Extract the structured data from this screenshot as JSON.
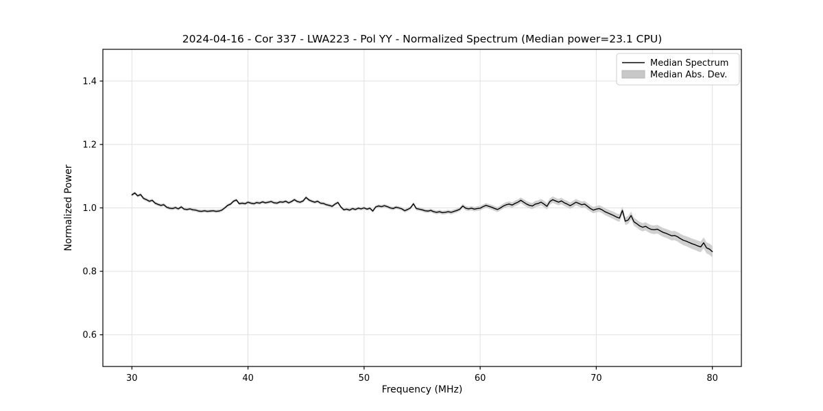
{
  "chart_data": {
    "type": "line",
    "title": "2024-04-16 - Cor 337 - LWA223 - Pol YY - Normalized Spectrum (Median power=23.1 CPU)",
    "xlabel": "Frequency (MHz)",
    "ylabel": "Normalized Power",
    "axes": {
      "xlim": [
        27.5,
        82.5
      ],
      "ylim": [
        0.5,
        1.5
      ],
      "xticks": [
        30,
        40,
        50,
        60,
        70,
        80
      ],
      "xtick_labels": [
        "30",
        "40",
        "50",
        "60",
        "70",
        "80"
      ],
      "yticks": [
        0.6,
        0.8,
        1.0,
        1.2,
        1.4
      ],
      "ytick_labels": [
        "0.6",
        "0.8",
        "1.0",
        "1.2",
        "1.4"
      ],
      "grid": true
    },
    "legend": {
      "position": "upper right",
      "entries": [
        {
          "label": "Median Spectrum",
          "type": "line",
          "color": "#000000"
        },
        {
          "label": "Median Abs. Dev.",
          "type": "patch",
          "color": "#c8c8c8"
        }
      ]
    },
    "x_start": 30,
    "x_step": 0.25,
    "series": [
      {
        "name": "Median Spectrum",
        "color": "#000000",
        "values": [
          1.041,
          1.047,
          1.038,
          1.042,
          1.03,
          1.026,
          1.021,
          1.024,
          1.015,
          1.011,
          1.008,
          1.01,
          1.002,
          0.999,
          0.998,
          1.001,
          0.997,
          1.003,
          0.996,
          0.995,
          0.997,
          0.994,
          0.993,
          0.99,
          0.989,
          0.991,
          0.989,
          0.99,
          0.991,
          0.989,
          0.99,
          0.993,
          1.0,
          1.008,
          1.012,
          1.021,
          1.025,
          1.013,
          1.015,
          1.013,
          1.018,
          1.015,
          1.013,
          1.017,
          1.015,
          1.019,
          1.016,
          1.018,
          1.02,
          1.016,
          1.015,
          1.019,
          1.018,
          1.021,
          1.016,
          1.02,
          1.026,
          1.02,
          1.018,
          1.022,
          1.033,
          1.025,
          1.021,
          1.018,
          1.021,
          1.015,
          1.014,
          1.01,
          1.008,
          1.005,
          1.012,
          1.017,
          1.003,
          0.994,
          0.996,
          0.993,
          0.998,
          0.995,
          0.999,
          0.997,
          1.0,
          0.996,
          0.999,
          0.99,
          1.003,
          1.006,
          1.004,
          1.007,
          1.004,
          1.0,
          0.998,
          1.002,
          1.0,
          0.997,
          0.991,
          0.995,
          1.0,
          1.013,
          0.998,
          0.996,
          0.994,
          0.991,
          0.99,
          0.992,
          0.988,
          0.986,
          0.988,
          0.985,
          0.986,
          0.988,
          0.986,
          0.989,
          0.992,
          0.996,
          1.006,
          0.999,
          0.997,
          0.999,
          0.996,
          0.998,
          0.999,
          1.004,
          1.008,
          1.005,
          1.002,
          0.998,
          0.995,
          1.0,
          1.006,
          1.01,
          1.012,
          1.009,
          1.014,
          1.018,
          1.024,
          1.018,
          1.012,
          1.008,
          1.006,
          1.012,
          1.014,
          1.018,
          1.012,
          1.005,
          1.02,
          1.026,
          1.022,
          1.018,
          1.022,
          1.016,
          1.012,
          1.007,
          1.012,
          1.018,
          1.014,
          1.01,
          1.012,
          1.005,
          0.998,
          0.993,
          0.996,
          0.998,
          0.994,
          0.988,
          0.984,
          0.98,
          0.976,
          0.971,
          0.968,
          0.992,
          0.958,
          0.962,
          0.976,
          0.956,
          0.95,
          0.943,
          0.939,
          0.942,
          0.936,
          0.932,
          0.931,
          0.933,
          0.928,
          0.923,
          0.92,
          0.916,
          0.912,
          0.913,
          0.909,
          0.903,
          0.898,
          0.895,
          0.891,
          0.887,
          0.884,
          0.88,
          0.877,
          0.89,
          0.874,
          0.87,
          0.862
        ]
      }
    ],
    "band": {
      "name": "Median Abs. Dev.",
      "color": "#c8c8c8",
      "mad_anchors": [
        [
          30,
          0.005
        ],
        [
          50,
          0.005
        ],
        [
          57,
          0.006
        ],
        [
          62,
          0.008
        ],
        [
          65,
          0.01
        ],
        [
          68,
          0.01
        ],
        [
          70,
          0.01
        ],
        [
          72,
          0.012
        ],
        [
          74,
          0.013
        ],
        [
          76,
          0.014
        ],
        [
          78,
          0.016
        ],
        [
          80,
          0.018
        ]
      ]
    }
  }
}
